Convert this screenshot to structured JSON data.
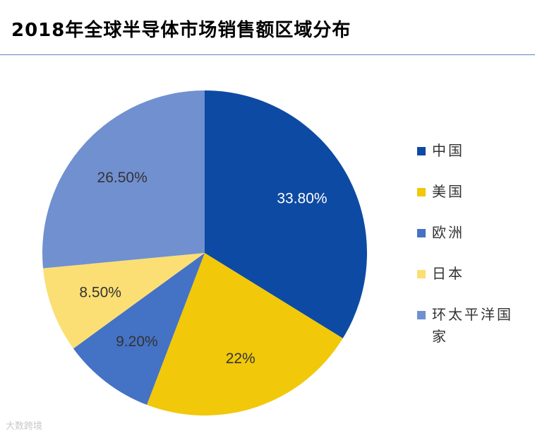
{
  "header": {
    "title": "2018年全球半导体市场销售额区域分布"
  },
  "watermark": {
    "text": "大数跨境"
  },
  "chart_data": {
    "type": "pie",
    "title": "2018年全球半导体市场销售额区域分布",
    "start_angle": "12 o'clock",
    "direction": "clockwise",
    "legend_position": "right",
    "slices": [
      {
        "label": "中国",
        "value": 33.8,
        "display": "33.80%",
        "color": "#0d4aa3",
        "label_color": "#ffffff"
      },
      {
        "label": "美国",
        "value": 22.0,
        "display": "22%",
        "color": "#f1c80a",
        "label_color": "#333333"
      },
      {
        "label": "欧洲",
        "value": 9.2,
        "display": "9.20%",
        "color": "#4472c4",
        "label_color": "#333333"
      },
      {
        "label": "日本",
        "value": 8.5,
        "display": "8.50%",
        "color": "#fbdf74",
        "label_color": "#333333"
      },
      {
        "label": "环太平洋国家",
        "value": 26.5,
        "display": "26.50%",
        "color": "#7190d0",
        "label_color": "#333333"
      }
    ]
  }
}
